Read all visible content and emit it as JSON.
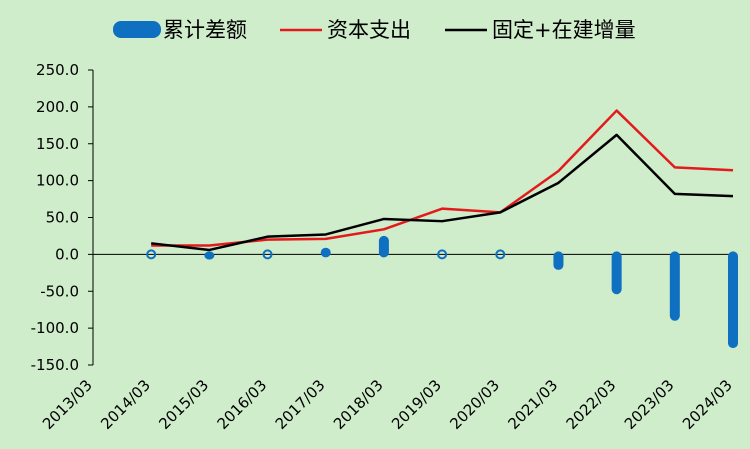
{
  "chart_data": {
    "type": "bar+line",
    "categories": [
      "2013/03",
      "2014/03",
      "2015/03",
      "2016/03",
      "2017/03",
      "2018/03",
      "2019/03",
      "2020/03",
      "2021/03",
      "2022/03",
      "2023/03",
      "2024/03"
    ],
    "y_ticks": [
      "250.0",
      "200.0",
      "150.0",
      "100.0",
      "50.0",
      "0.0",
      "-50.0",
      "-100.0",
      "-150.0"
    ],
    "ylim": [
      -150,
      250
    ],
    "grid": false,
    "legend_position": "top",
    "series": [
      {
        "name": "累计差额",
        "kind": "bar",
        "color": "#0f6fc0",
        "x": [
          "2014/03",
          "2015/03",
          "2016/03",
          "2017/03",
          "2018/03",
          "2019/03",
          "2020/03",
          "2021/03",
          "2022/03",
          "2023/03",
          "2024/03"
        ],
        "values": [
          0,
          -3,
          0,
          5,
          21,
          0,
          0,
          -17,
          -50,
          -86,
          -123
        ]
      },
      {
        "name": "资本支出",
        "kind": "line",
        "color": "#e31a1c",
        "x": [
          "2014/03",
          "2015/03",
          "2016/03",
          "2017/03",
          "2018/03",
          "2019/03",
          "2020/03",
          "2021/03",
          "2022/03",
          "2023/03",
          "2024/03"
        ],
        "values": [
          12,
          12,
          20,
          21,
          34,
          62,
          57,
          113,
          195,
          118,
          114
        ]
      },
      {
        "name": "固定+在建增量",
        "kind": "line",
        "color": "#000000",
        "x": [
          "2014/03",
          "2015/03",
          "2016/03",
          "2017/03",
          "2018/03",
          "2019/03",
          "2020/03",
          "2021/03",
          "2022/03",
          "2023/03",
          "2024/03"
        ],
        "values": [
          15,
          6,
          24,
          27,
          48,
          45,
          57,
          97,
          162,
          82,
          79
        ]
      }
    ]
  }
}
